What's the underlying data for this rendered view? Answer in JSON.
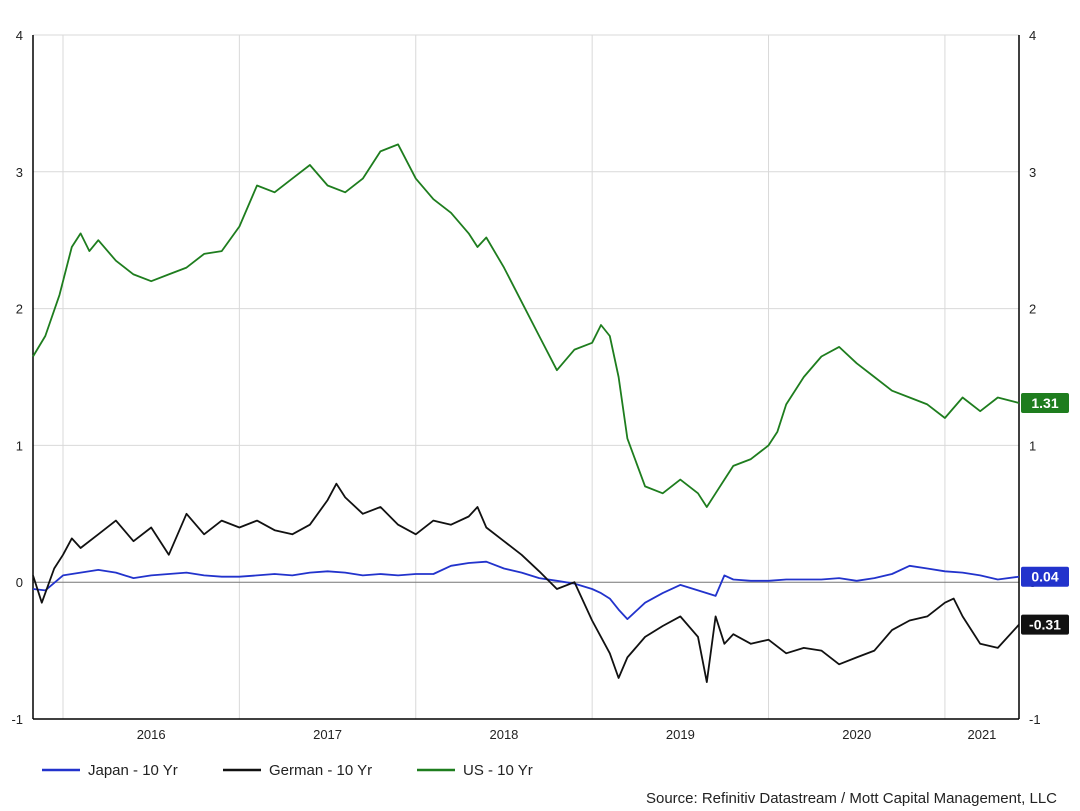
{
  "chart_data": {
    "type": "line",
    "title": "",
    "xlabel": "",
    "ylabel": "",
    "ylim": [
      -1,
      4
    ],
    "yticks": [
      -1,
      0,
      1,
      2,
      3,
      4
    ],
    "xlim": [
      2015.83,
      2021.42
    ],
    "xtick_labels": [
      {
        "x": 2016.0,
        "label": "2016"
      },
      {
        "x": 2017.0,
        "label": "2017"
      },
      {
        "x": 2018.0,
        "label": "2018"
      },
      {
        "x": 2019.0,
        "label": "2019"
      },
      {
        "x": 2020.0,
        "label": "2020"
      },
      {
        "x": 2021.0,
        "label": "2021"
      }
    ],
    "grid": true,
    "legend_position": "bottom-left",
    "source": "Source: Refinitiv Datastream / Mott Capital Management, LLC",
    "series": [
      {
        "name": "Japan - 10 Yr",
        "color": "#2233cc",
        "last_label": "0.04",
        "x": [
          2015.83,
          2015.9,
          2016.0,
          2016.1,
          2016.2,
          2016.3,
          2016.4,
          2016.5,
          2016.6,
          2016.7,
          2016.8,
          2016.9,
          2017.0,
          2017.1,
          2017.2,
          2017.3,
          2017.4,
          2017.5,
          2017.6,
          2017.7,
          2017.8,
          2017.9,
          2018.0,
          2018.1,
          2018.2,
          2018.3,
          2018.4,
          2018.5,
          2018.6,
          2018.7,
          2018.8,
          2018.9,
          2019.0,
          2019.05,
          2019.1,
          2019.15,
          2019.2,
          2019.3,
          2019.4,
          2019.5,
          2019.6,
          2019.7,
          2019.75,
          2019.8,
          2019.9,
          2020.0,
          2020.1,
          2020.2,
          2020.3,
          2020.4,
          2020.5,
          2020.6,
          2020.7,
          2020.8,
          2020.9,
          2021.0,
          2021.1,
          2021.2,
          2021.3,
          2021.42
        ],
        "y": [
          -0.05,
          -0.06,
          0.05,
          0.07,
          0.09,
          0.07,
          0.03,
          0.05,
          0.06,
          0.07,
          0.05,
          0.04,
          0.04,
          0.05,
          0.06,
          0.05,
          0.07,
          0.08,
          0.07,
          0.05,
          0.06,
          0.05,
          0.06,
          0.06,
          0.12,
          0.14,
          0.15,
          0.1,
          0.07,
          0.03,
          0.01,
          -0.01,
          -0.05,
          -0.08,
          -0.12,
          -0.2,
          -0.27,
          -0.15,
          -0.08,
          -0.02,
          -0.06,
          -0.1,
          0.05,
          0.02,
          0.01,
          0.01,
          0.02,
          0.02,
          0.02,
          0.03,
          0.01,
          0.03,
          0.06,
          0.12,
          0.1,
          0.08,
          0.07,
          0.05,
          0.02,
          0.04
        ]
      },
      {
        "name": "German - 10 Yr",
        "color": "#111111",
        "last_label": "-0.31",
        "x": [
          2015.83,
          2015.88,
          2015.95,
          2016.0,
          2016.05,
          2016.1,
          2016.2,
          2016.3,
          2016.4,
          2016.5,
          2016.6,
          2016.7,
          2016.8,
          2016.9,
          2017.0,
          2017.1,
          2017.2,
          2017.3,
          2017.4,
          2017.5,
          2017.55,
          2017.6,
          2017.7,
          2017.8,
          2017.9,
          2018.0,
          2018.1,
          2018.2,
          2018.3,
          2018.35,
          2018.4,
          2018.5,
          2018.6,
          2018.7,
          2018.8,
          2018.9,
          2019.0,
          2019.1,
          2019.15,
          2019.2,
          2019.3,
          2019.4,
          2019.5,
          2019.6,
          2019.65,
          2019.7,
          2019.75,
          2019.8,
          2019.9,
          2020.0,
          2020.1,
          2020.2,
          2020.3,
          2020.4,
          2020.5,
          2020.6,
          2020.7,
          2020.8,
          2020.9,
          2021.0,
          2021.05,
          2021.1,
          2021.2,
          2021.3,
          2021.42
        ],
        "y": [
          0.05,
          -0.15,
          0.1,
          0.2,
          0.32,
          0.25,
          0.35,
          0.45,
          0.3,
          0.4,
          0.2,
          0.5,
          0.35,
          0.45,
          0.4,
          0.45,
          0.38,
          0.35,
          0.42,
          0.6,
          0.72,
          0.62,
          0.5,
          0.55,
          0.42,
          0.35,
          0.45,
          0.42,
          0.48,
          0.55,
          0.4,
          0.3,
          0.2,
          0.08,
          -0.05,
          0.0,
          -0.28,
          -0.52,
          -0.7,
          -0.55,
          -0.4,
          -0.32,
          -0.25,
          -0.4,
          -0.73,
          -0.25,
          -0.45,
          -0.38,
          -0.45,
          -0.42,
          -0.52,
          -0.48,
          -0.5,
          -0.6,
          -0.55,
          -0.5,
          -0.35,
          -0.28,
          -0.25,
          -0.15,
          -0.12,
          -0.25,
          -0.45,
          -0.48,
          -0.31
        ]
      },
      {
        "name": "US - 10 Yr",
        "color": "#1e7d1e",
        "last_label": "1.31",
        "x": [
          2015.83,
          2015.9,
          2015.98,
          2016.05,
          2016.1,
          2016.15,
          2016.2,
          2016.3,
          2016.4,
          2016.5,
          2016.6,
          2016.7,
          2016.8,
          2016.9,
          2017.0,
          2017.1,
          2017.2,
          2017.3,
          2017.4,
          2017.5,
          2017.6,
          2017.7,
          2017.8,
          2017.9,
          2018.0,
          2018.1,
          2018.2,
          2018.3,
          2018.35,
          2018.4,
          2018.5,
          2018.6,
          2018.7,
          2018.8,
          2018.9,
          2019.0,
          2019.05,
          2019.1,
          2019.15,
          2019.2,
          2019.3,
          2019.4,
          2019.5,
          2019.6,
          2019.65,
          2019.7,
          2019.75,
          2019.8,
          2019.9,
          2020.0,
          2020.05,
          2020.1,
          2020.2,
          2020.3,
          2020.4,
          2020.5,
          2020.6,
          2020.7,
          2020.8,
          2020.9,
          2021.0,
          2021.1,
          2021.2,
          2021.3,
          2021.42
        ],
        "y": [
          1.65,
          1.8,
          2.1,
          2.45,
          2.55,
          2.42,
          2.5,
          2.35,
          2.25,
          2.2,
          2.25,
          2.3,
          2.4,
          2.42,
          2.6,
          2.9,
          2.85,
          2.95,
          3.05,
          2.9,
          2.85,
          2.95,
          3.15,
          3.2,
          2.95,
          2.8,
          2.7,
          2.55,
          2.45,
          2.52,
          2.3,
          2.05,
          1.8,
          1.55,
          1.7,
          1.75,
          1.88,
          1.8,
          1.5,
          1.05,
          0.7,
          0.65,
          0.75,
          0.65,
          0.55,
          0.65,
          0.75,
          0.85,
          0.9,
          1.0,
          1.1,
          1.3,
          1.5,
          1.65,
          1.72,
          1.6,
          1.5,
          1.4,
          1.35,
          1.3,
          1.2,
          1.35,
          1.25,
          1.35,
          1.31
        ]
      }
    ]
  }
}
